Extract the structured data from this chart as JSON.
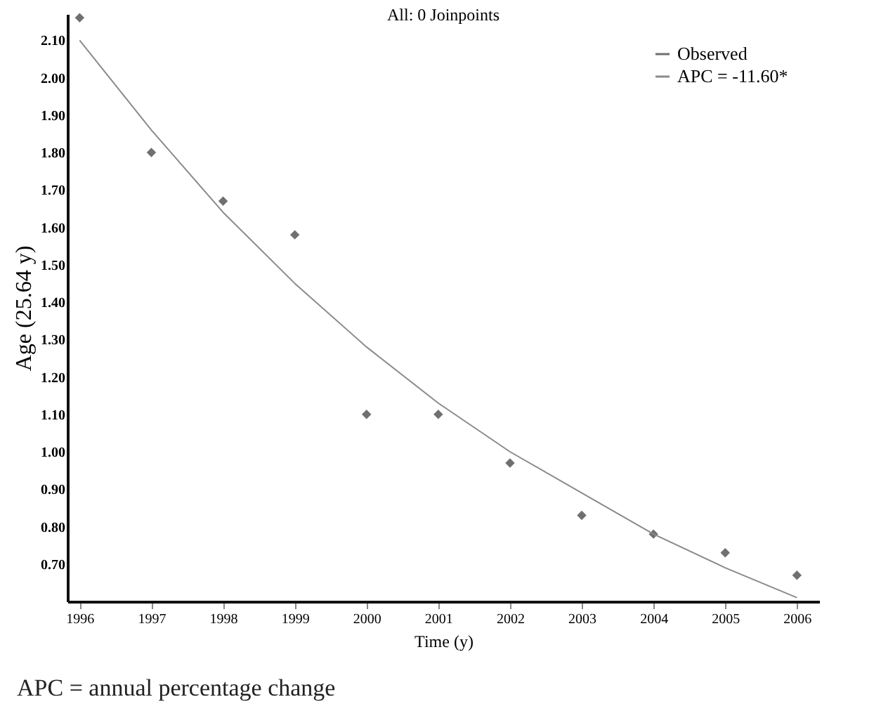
{
  "chart_data": {
    "type": "scatter",
    "title": "All: 0 Joinpoints",
    "xlabel": "Time (y)",
    "ylabel": "Age (25.64 y)",
    "x": [
      1996,
      1997,
      1998,
      1999,
      2000,
      2001,
      2002,
      2003,
      2004,
      2005,
      2006
    ],
    "series": [
      {
        "name": "Observed",
        "color": "#707070",
        "marker": "diamond",
        "values": [
          2.16,
          1.8,
          1.67,
          1.58,
          1.1,
          1.1,
          0.97,
          0.83,
          0.78,
          0.73,
          0.67
        ]
      },
      {
        "name": "APC = -11.60*",
        "type": "line",
        "color": "#8a8a8a",
        "line_style": "solid",
        "values": [
          2.1,
          1.86,
          1.64,
          1.45,
          1.28,
          1.13,
          1.0,
          0.89,
          0.78,
          0.69,
          0.61
        ]
      }
    ],
    "xlim": [
      1995.83,
      2006.31
    ],
    "xticks": [
      1996,
      1997,
      1998,
      1999,
      2000,
      2001,
      2002,
      2003,
      2004,
      2005,
      2006
    ],
    "ylim": [
      0.6,
      2.17
    ],
    "yticks": [
      {
        "value": 0.7,
        "label": "0.70"
      },
      {
        "value": 0.8,
        "label": "0.80"
      },
      {
        "value": 0.9,
        "label": "0.90"
      },
      {
        "value": 1.0,
        "label": "1.00"
      },
      {
        "value": 1.1,
        "label": "1.10"
      },
      {
        "value": 1.2,
        "label": "1.20"
      },
      {
        "value": 1.3,
        "label": "1.30"
      },
      {
        "value": 1.4,
        "label": "1.40"
      },
      {
        "value": 1.5,
        "label": "1.50"
      },
      {
        "value": 1.6,
        "label": "1.60"
      },
      {
        "value": 1.7,
        "label": "1.70"
      },
      {
        "value": 1.8,
        "label": "1.80"
      },
      {
        "value": 1.9,
        "label": "1.90"
      },
      {
        "value": 2.0,
        "label": "2.00"
      },
      {
        "value": 2.1,
        "label": "2.10"
      }
    ],
    "grid": false,
    "legend": "top right",
    "annotations": [
      "APC = annual percentage change"
    ]
  }
}
